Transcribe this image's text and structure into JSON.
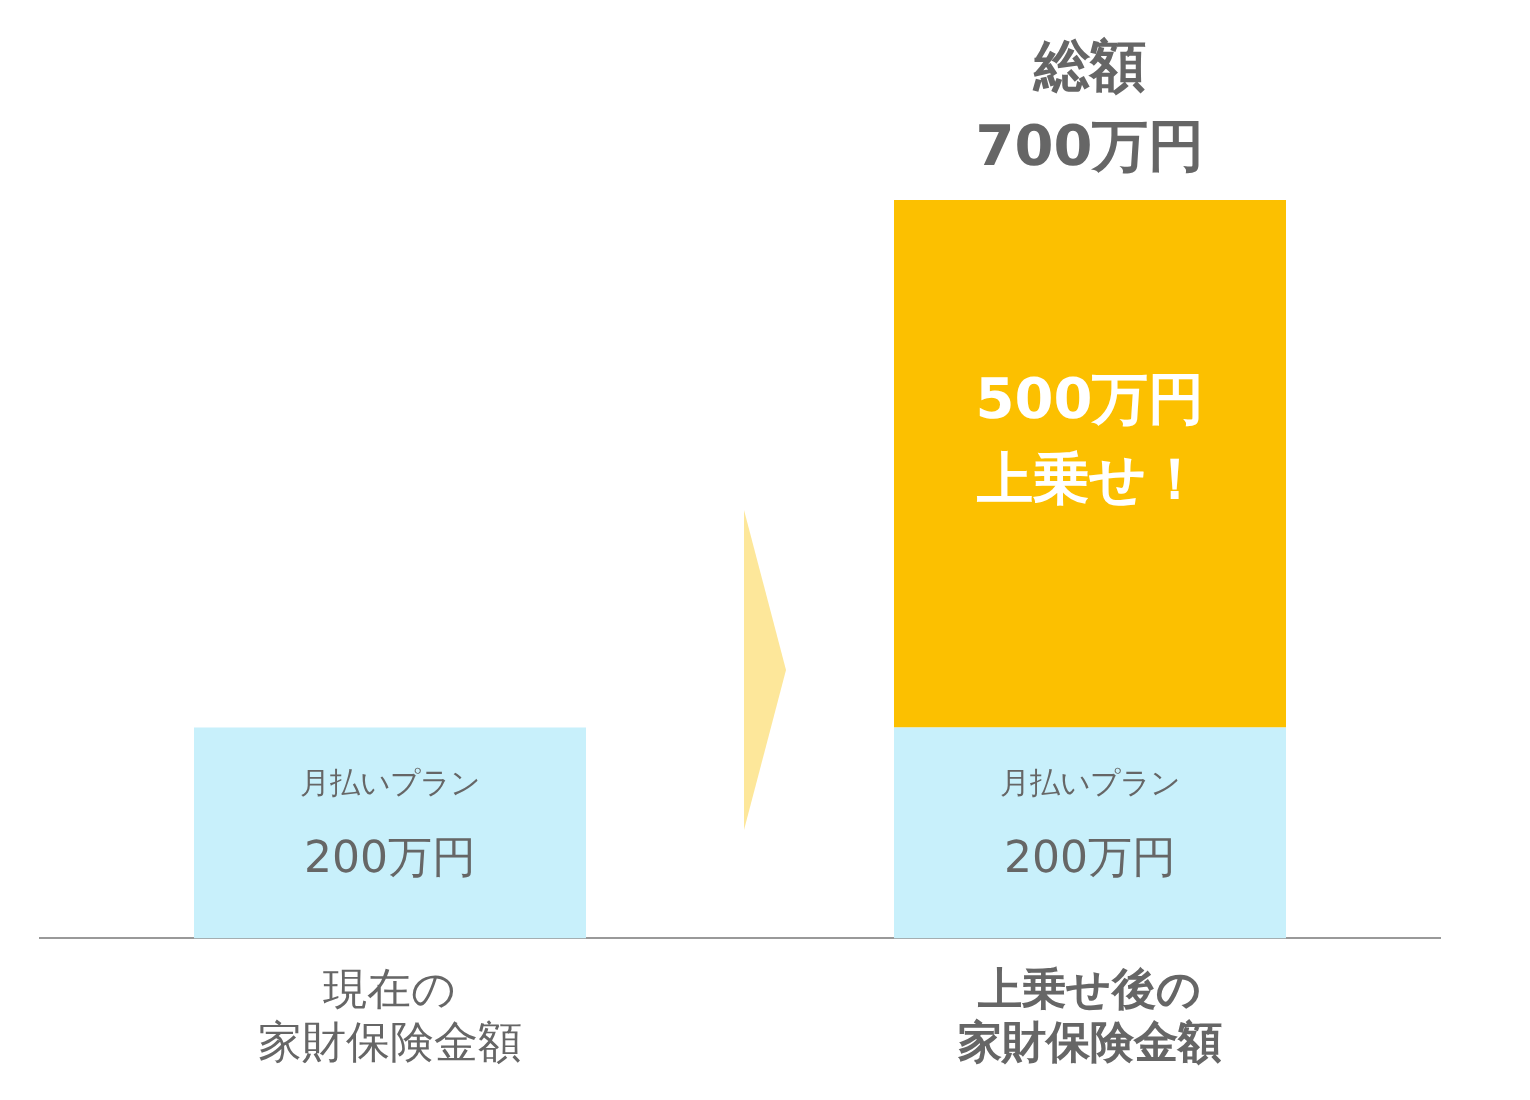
{
  "chart_data": {
    "type": "bar",
    "stacked": true,
    "categories": [
      "現在の家財保険金額",
      "上乗せ後の家財保険金額"
    ],
    "series": [
      {
        "color": "#c8f0fb",
        "values": [
          200,
          200
        ],
        "value_labels": [
          "月払いプラン\n200万円",
          "月払いプラン\n200万円"
        ]
      },
      {
        "color": "#fcc000",
        "values": [
          null,
          500
        ],
        "value_labels": [
          null,
          "500万円上乗せ！"
        ]
      }
    ],
    "totals": [
      null,
      "総額\n700万円"
    ],
    "grid": false,
    "legend": false
  }
}
